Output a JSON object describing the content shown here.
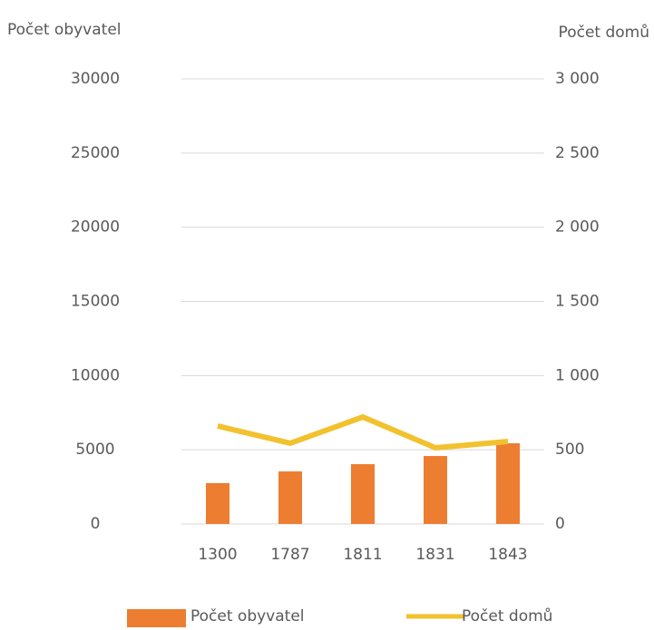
{
  "chart_data": {
    "type": "combo",
    "categories": [
      "1300",
      "1787",
      "1811",
      "1831",
      "1843"
    ],
    "series": [
      {
        "name": "Počet obyvatel",
        "type": "bar",
        "color": "#ed7d31",
        "values": [
          2750,
          3540,
          4030,
          4580,
          5440
        ]
      },
      {
        "name": "Počet domů",
        "type": "line",
        "axis": "y2",
        "color": "#f2c12e",
        "values": [
          660,
          544,
          721,
          513,
          556
        ]
      }
    ],
    "ylabel": "Počet obyvatel",
    "y2label": "Počet domů",
    "ylim": [
      0,
      30000
    ],
    "yticks": [
      0,
      5000,
      10000,
      15000,
      20000,
      25000,
      30000
    ],
    "y2lim": [
      0,
      3000
    ],
    "y2ticks": [
      0,
      500,
      {
        "value": 1000,
        "label": "1 000"
      },
      {
        "value": 1500,
        "label": "1 500"
      },
      {
        "value": 2000,
        "label": "2 000"
      },
      {
        "value": 2500,
        "label": "2 500"
      },
      {
        "value": 3000,
        "label": "3 000"
      }
    ],
    "grid": true,
    "legend": "bottom"
  }
}
